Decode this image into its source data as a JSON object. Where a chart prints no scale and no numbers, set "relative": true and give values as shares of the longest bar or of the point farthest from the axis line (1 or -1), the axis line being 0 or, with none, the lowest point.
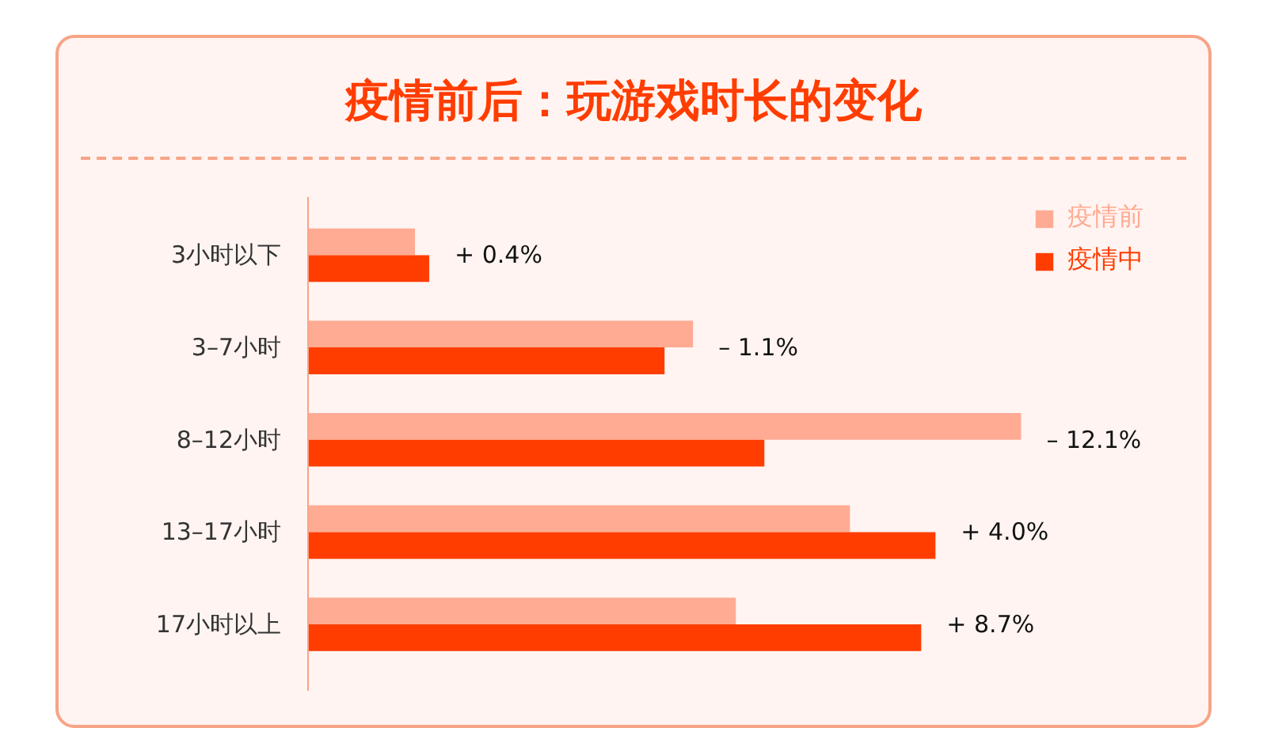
{
  "chart_data": {
    "type": "bar",
    "orientation": "horizontal",
    "relative": true,
    "title": "疫情前后：玩游戏时长的变化",
    "categories": [
      "3小时以下",
      "3–7小时",
      "8–12小时",
      "13–17小时",
      "17小时以上"
    ],
    "series": [
      {
        "name": "疫情前",
        "color": "#ffab93",
        "values": [
          0.15,
          0.54,
          1.0,
          0.76,
          0.6
        ]
      },
      {
        "name": "疫情中",
        "color": "#ff3d00",
        "values": [
          0.17,
          0.5,
          0.64,
          0.88,
          0.86
        ]
      }
    ],
    "annotations": [
      "+ 0.4%",
      "– 1.1%",
      "– 12.1%",
      "+ 4.0%",
      "+ 8.7%"
    ],
    "legend": "top right"
  }
}
